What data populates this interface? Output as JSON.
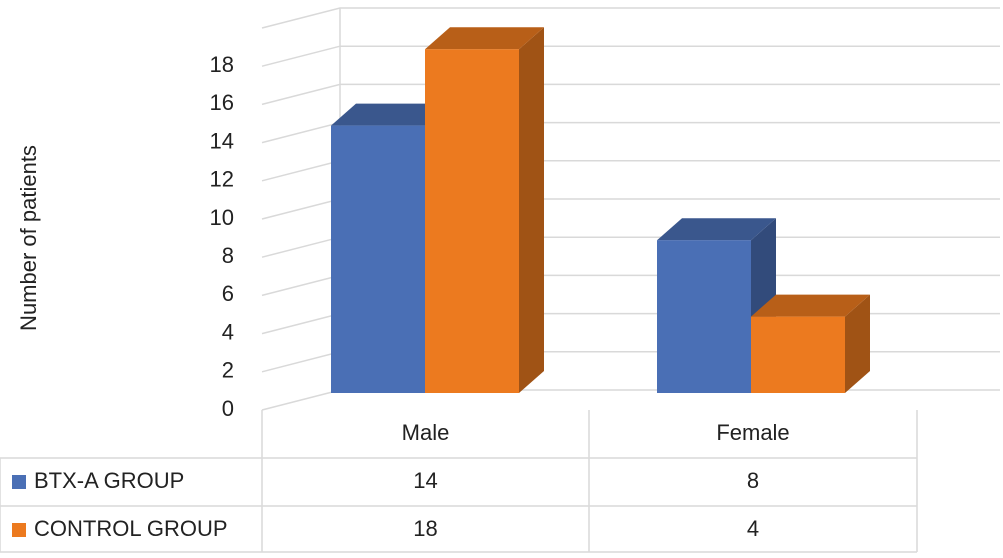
{
  "chart_data": {
    "type": "bar3d",
    "y_label": "Number of patients",
    "categories": [
      "Male",
      "Female"
    ],
    "series": [
      {
        "name": "BTX-A GROUP",
        "color": "#4a6fb5",
        "values": [
          14,
          8
        ]
      },
      {
        "name": "CONTROL GROUP",
        "color": "#ec7a1f",
        "values": [
          18,
          4
        ]
      }
    ],
    "ylim": [
      0,
      20
    ],
    "yticks": [
      0,
      2,
      4,
      6,
      8,
      10,
      12,
      14,
      16,
      18
    ],
    "grid": true,
    "data_table": true
  }
}
